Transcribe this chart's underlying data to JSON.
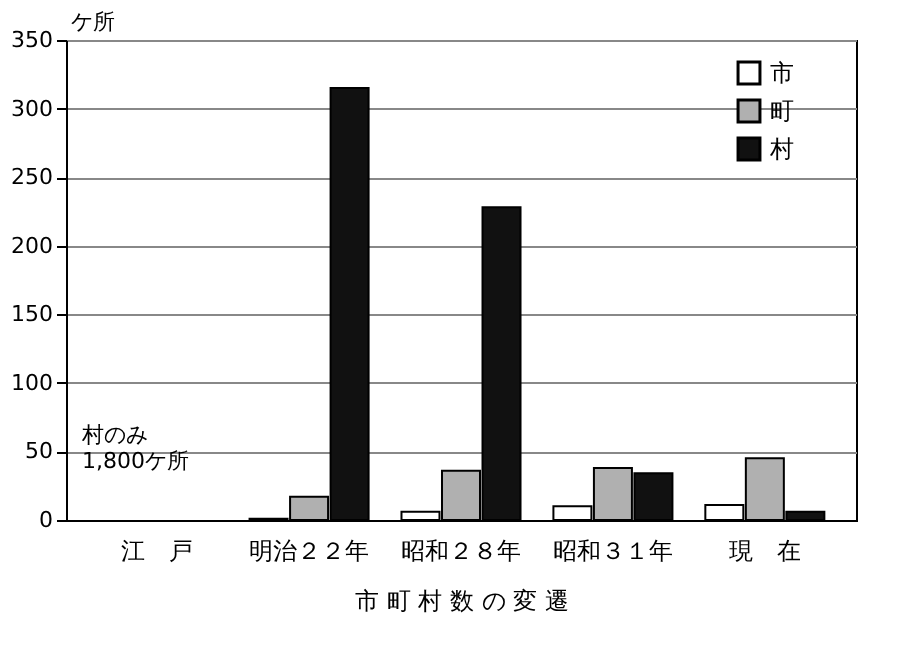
{
  "chart_data": {
    "type": "bar",
    "xlabel": "市 町 村 数 の 変 遷",
    "ylabel": "ケ所",
    "categories": [
      "江　戸",
      "明治２２年",
      "昭和２８年",
      "昭和３１年",
      "現　在"
    ],
    "series": [
      {
        "name": "市",
        "color": "#ffffff",
        "values": [
          null,
          1,
          6,
          10,
          11
        ]
      },
      {
        "name": "町",
        "color": "#b0b0b0",
        "values": [
          null,
          17,
          36,
          38,
          45
        ]
      },
      {
        "name": "村",
        "color": "#111111",
        "values": [
          null,
          315,
          228,
          34,
          6
        ]
      }
    ],
    "ylim": [
      0,
      350
    ],
    "yticks": [
      0,
      50,
      100,
      150,
      200,
      250,
      300,
      350
    ],
    "grid": "y",
    "legend": "top right",
    "annotations": [
      "村のみ\n1,800ケ所"
    ]
  }
}
